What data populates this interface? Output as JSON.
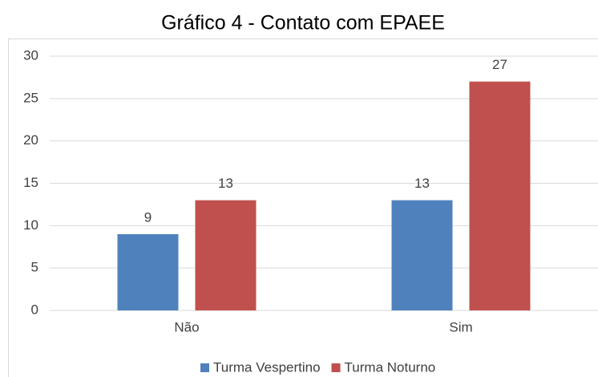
{
  "chart_data": {
    "type": "bar",
    "title": "Gráfico 4 - Contato com EPAEE",
    "categories": [
      "Não",
      "Sim"
    ],
    "series": [
      {
        "name": "Turma Vespertino",
        "color": "#4f81bd",
        "values": [
          9,
          13
        ]
      },
      {
        "name": "Turma Noturno",
        "color": "#c0504d",
        "values": [
          13,
          27
        ]
      }
    ],
    "ylim": [
      0,
      30
    ],
    "yticks": [
      0,
      5,
      10,
      15,
      20,
      25,
      30
    ],
    "grid": true,
    "legend": "bottom"
  }
}
